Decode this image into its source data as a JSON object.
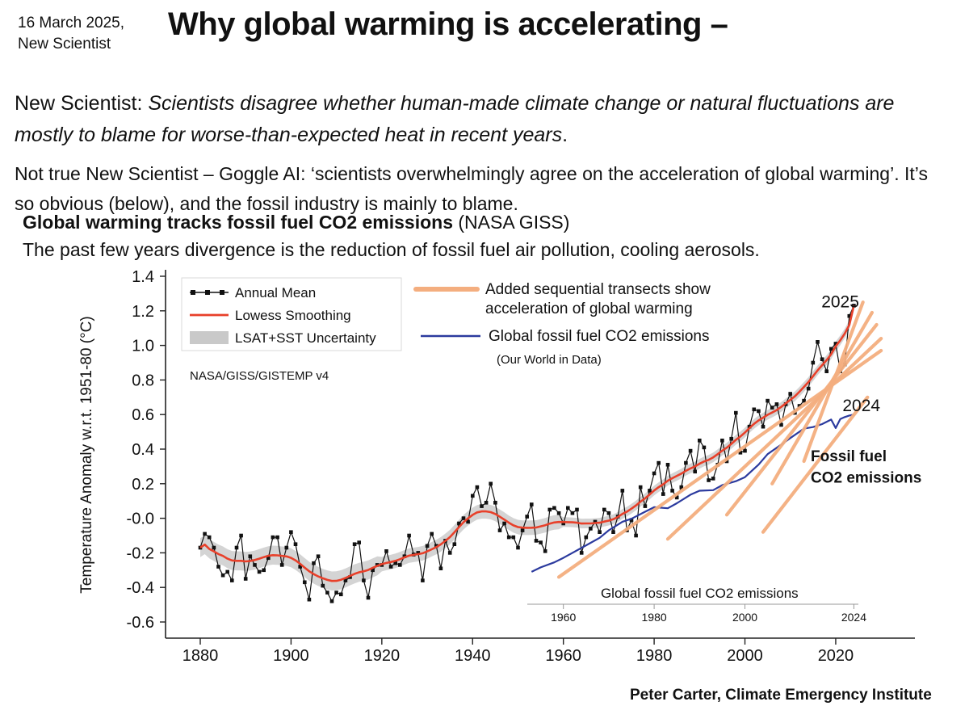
{
  "header": {
    "date_line1": "16 March 2025,",
    "date_line2": "New Scientist",
    "title": "Why global warming is accelerating –"
  },
  "paragraphs": {
    "p1_lead": "New Scientist: ",
    "p1_italic": "Scientists disagree whether human-made climate change or natural fluctuations are mostly to blame for worse-than-expected heat in recent years",
    "p1_end": ".",
    "p2": "Not true New Scientist – Goggle AI: ‘scientists overwhelmingly agree on the acceleration of global warming’. It’s so obvious (below), and the fossil industry is mainly to blame."
  },
  "chart_heading": {
    "bold": "Global warming tracks fossil fuel CO2 emissions",
    "normal": " (NASA GISS)",
    "subtitle": "The past few years divergence is the reduction of fossil fuel air pollution, cooling aerosols."
  },
  "footer": {
    "credit": "Peter Carter, Climate Emergency Institute"
  },
  "chart_data": {
    "type": "line",
    "title": "",
    "ylabel": "Temperature Anomaly w.r.t. 1951-80 (°C)",
    "xlim": [
      1872,
      2038
    ],
    "ylim": [
      -0.7,
      1.46
    ],
    "xticks": [
      1880,
      1900,
      1920,
      1940,
      1960,
      1980,
      2000,
      2020
    ],
    "ytick_labels": [
      "1.4",
      "1.2",
      "1.0",
      "0.8",
      "0.6",
      "0.4",
      "0.2",
      "-0.0",
      "-0.2",
      "-0.4",
      "-0.6"
    ],
    "grid": false,
    "source_label": "NASA/GISS/GISTEMP v4",
    "colors": {
      "annual": "#111111",
      "lowess": "#e8402a",
      "uncertainty": "#c9c9c9",
      "co2": "#2b3a9e",
      "transect": "#f4ae7f"
    },
    "legend_box": {
      "position": "upper-left",
      "items": [
        {
          "label": "Annual Mean",
          "type": "line-markers"
        },
        {
          "label": "Lowess Smoothing",
          "type": "line"
        },
        {
          "label": "LSAT+SST Uncertainty",
          "type": "band"
        }
      ]
    },
    "overlay_legend": {
      "transects_line1": "Added sequential transects show",
      "transects_line2": "acceleration of global warming",
      "co2_label": "Global fossil fuel CO2 emissions",
      "co2_sublabel": "(Our World in Data)"
    },
    "annotations": {
      "label_2025": "2025",
      "label_2024": "2024",
      "co2_line_label_line1": "Fossil fuel",
      "co2_line_label_line2": "CO2 emissions",
      "co2_label_color": "#3f51a3",
      "inner_axis_title": "Global fossil fuel CO2 emissions",
      "inner_axis_tick_years": [
        1960,
        1980,
        2000,
        2024
      ],
      "inner_axis_tick_labels": [
        "1960",
        "1980",
        "2000",
        "2024"
      ]
    },
    "temperature_series": {
      "name": "Annual Mean",
      "units": "°C anomaly vs 1951-80",
      "start_year": 1880,
      "values": [
        -0.17,
        -0.09,
        -0.11,
        -0.17,
        -0.28,
        -0.33,
        -0.31,
        -0.36,
        -0.17,
        -0.1,
        -0.35,
        -0.22,
        -0.27,
        -0.31,
        -0.3,
        -0.23,
        -0.11,
        -0.11,
        -0.27,
        -0.17,
        -0.08,
        -0.15,
        -0.28,
        -0.37,
        -0.47,
        -0.26,
        -0.22,
        -0.39,
        -0.43,
        -0.48,
        -0.43,
        -0.44,
        -0.36,
        -0.34,
        -0.15,
        -0.14,
        -0.36,
        -0.46,
        -0.3,
        -0.27,
        -0.27,
        -0.19,
        -0.28,
        -0.26,
        -0.27,
        -0.22,
        -0.1,
        -0.21,
        -0.2,
        -0.36,
        -0.16,
        -0.09,
        -0.16,
        -0.29,
        -0.13,
        -0.2,
        -0.15,
        -0.03,
        0.0,
        -0.02,
        0.13,
        0.18,
        0.07,
        0.09,
        0.2,
        0.09,
        -0.07,
        -0.03,
        -0.11,
        -0.11,
        -0.17,
        -0.07,
        0.01,
        0.08,
        -0.13,
        -0.14,
        -0.19,
        0.05,
        0.06,
        0.03,
        -0.03,
        0.06,
        0.03,
        0.05,
        -0.2,
        -0.11,
        -0.06,
        -0.02,
        -0.08,
        0.05,
        0.03,
        -0.08,
        0.01,
        0.16,
        -0.07,
        -0.01,
        -0.1,
        0.18,
        0.07,
        0.16,
        0.26,
        0.32,
        0.14,
        0.31,
        0.16,
        0.12,
        0.18,
        0.32,
        0.39,
        0.27,
        0.45,
        0.41,
        0.22,
        0.23,
        0.31,
        0.45,
        0.33,
        0.46,
        0.61,
        0.38,
        0.39,
        0.53,
        0.63,
        0.62,
        0.53,
        0.68,
        0.64,
        0.66,
        0.54,
        0.66,
        0.72,
        0.61,
        0.65,
        0.68,
        0.75,
        0.9,
        1.02,
        0.92,
        0.85,
        0.98,
        1.01,
        0.85,
        0.89,
        1.17,
        1.23
      ]
    },
    "lowess": {
      "name": "Lowess Smoothing",
      "derived": "smoothed from annual values"
    },
    "co2_series": {
      "name": "Global fossil fuel CO2 emissions",
      "units": "GtCO2",
      "years": [
        1953,
        1955,
        1958,
        1960,
        1962,
        1965,
        1968,
        1970,
        1973,
        1975,
        1978,
        1980,
        1983,
        1985,
        1988,
        1990,
        1993,
        1995,
        1998,
        2000,
        2003,
        2005,
        2008,
        2010,
        2013,
        2015,
        2017,
        2019,
        2020,
        2021,
        2022,
        2023,
        2024
      ],
      "values": [
        6.6,
        7.5,
        8.5,
        9.4,
        10.4,
        11.9,
        13.4,
        14.9,
        16.6,
        17.2,
        18.6,
        19.5,
        19.3,
        20.3,
        22.0,
        22.8,
        22.9,
        23.9,
        24.7,
        25.5,
        28.0,
        30.1,
        32.0,
        33.3,
        35.2,
        35.5,
        36.1,
        37.0,
        35.3,
        37.1,
        37.5,
        37.8,
        38.0
      ]
    },
    "transects": [
      [
        [
          1959,
          -0.34
        ],
        [
          2030,
          0.97
        ]
      ],
      [
        [
          1983,
          -0.12
        ],
        [
          2030,
          1.04
        ]
      ],
      [
        [
          1996,
          0.02
        ],
        [
          2029,
          1.12
        ]
      ],
      [
        [
          2006,
          0.2
        ],
        [
          2028,
          1.19
        ]
      ],
      [
        [
          2013,
          0.33
        ],
        [
          2026,
          1.25
        ]
      ],
      [
        [
          2004,
          -0.08
        ],
        [
          2027,
          0.7
        ]
      ]
    ]
  }
}
